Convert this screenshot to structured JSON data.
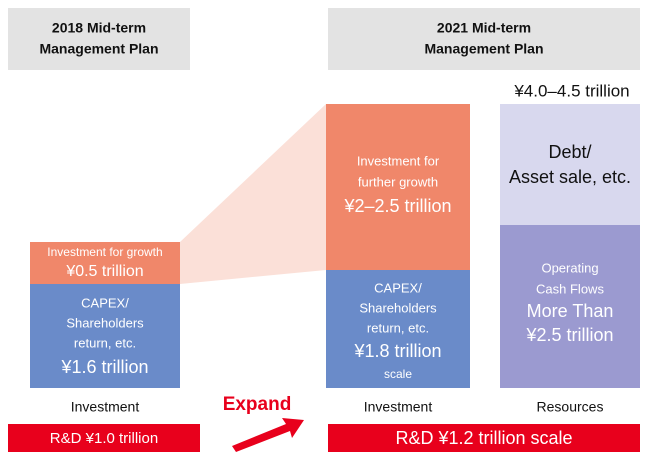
{
  "headers": {
    "left": [
      "2018 Mid-term",
      "Management Plan"
    ],
    "right": [
      "2021 Mid-term",
      "Management Plan"
    ]
  },
  "total_label": "¥4.0–4.5 trillion",
  "left_column": {
    "growth": [
      "Investment for growth",
      "¥0.5 trillion"
    ],
    "capex": [
      "CAPEX/",
      "Shareholders",
      "return, etc.",
      "¥1.6 trillion"
    ],
    "label": "Investment"
  },
  "middle_column": {
    "growth": [
      "Investment for",
      "further growth",
      "¥2–2.5 trillion"
    ],
    "capex": [
      "CAPEX/",
      "Shareholders",
      "return, etc.",
      "¥1.8 trillion",
      "scale"
    ],
    "label": "Investment"
  },
  "right_column": {
    "debt": [
      "Debt/",
      "Asset sale, etc."
    ],
    "cash_flows": [
      "Operating",
      "Cash Flows",
      "More Than",
      "¥2.5 trillion"
    ],
    "label": "Resources"
  },
  "expand_label": "Expand",
  "rd": {
    "left": "R&D ¥1.0 trillion",
    "right": "R&D ¥1.2 trillion scale"
  }
}
